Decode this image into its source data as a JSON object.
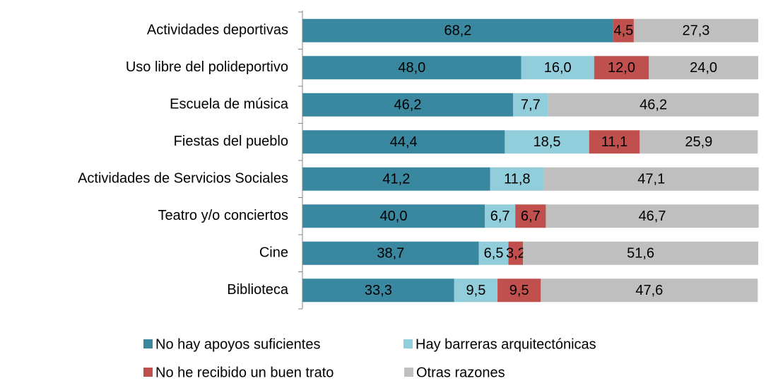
{
  "chart_data": {
    "type": "stacked_barh",
    "categories": [
      "Actividades deportivas",
      "Uso libre del polideportivo",
      "Escuela de música",
      "Fiestas del pueblo",
      "Actividades de Servicios Sociales",
      "Teatro y/o conciertos",
      "Cine",
      "Biblioteca"
    ],
    "xlim": [
      0,
      100
    ],
    "legend": "bottom",
    "series": [
      {
        "name": "No hay apoyos suficientes",
        "color": "#3a87a0",
        "values": [
          68.2,
          48.0,
          46.2,
          44.4,
          41.2,
          40.0,
          38.7,
          33.3
        ],
        "value_labels": [
          "68,2",
          "48,0",
          "46,2",
          "44,4",
          "41,2",
          "40,0",
          "38,7",
          "33,3"
        ]
      },
      {
        "name": "Hay barreras arquitectónicas",
        "color": "#92cddc",
        "values": [
          0,
          16.0,
          7.7,
          18.5,
          11.8,
          6.7,
          6.5,
          9.5
        ],
        "value_labels": [
          null,
          "16,0",
          "7,7",
          "18,5",
          "11,8",
          "6,7",
          "6,5",
          "9,5"
        ]
      },
      {
        "name": "No he recibido un buen trato",
        "color": "#c0504d",
        "values": [
          4.5,
          12.0,
          0,
          11.1,
          0,
          6.7,
          3.2,
          9.5
        ],
        "value_labels": [
          "4,5",
          "12,0",
          null,
          "11,1",
          null,
          "6,7",
          "3,2",
          "9,5"
        ]
      },
      {
        "name": "Otras razones",
        "color": "#bfbfbf",
        "values": [
          27.3,
          24.0,
          46.2,
          25.9,
          47.1,
          46.7,
          51.6,
          47.6
        ],
        "value_labels": [
          "27,3",
          "24,0",
          "46,2",
          "25,9",
          "47,1",
          "46,7",
          "51,6",
          "47,6"
        ]
      }
    ]
  }
}
